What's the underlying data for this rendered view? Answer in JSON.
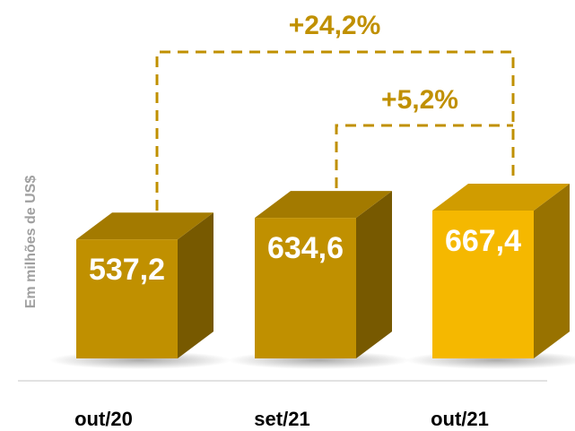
{
  "chart_data": {
    "type": "bar3d",
    "axis_label": "Em milhões de US$",
    "categories": [
      "out/20",
      "set/21",
      "out/21"
    ],
    "values": [
      537.2,
      634.6,
      667.4
    ],
    "value_labels": [
      "537,2",
      "634,6",
      "667,4"
    ],
    "colors": [
      "#c09000",
      "#c09000",
      "#f5b800"
    ],
    "annotations": [
      "+24,2%",
      "+5,2%"
    ]
  }
}
